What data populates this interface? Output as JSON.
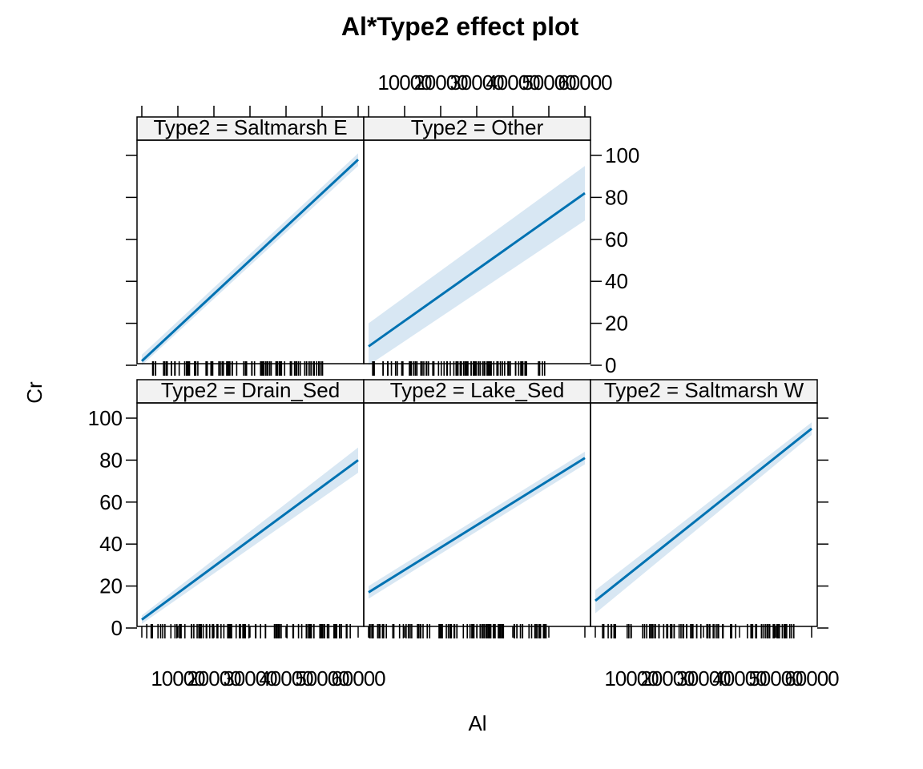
{
  "chart_data": {
    "type": "line",
    "title": "Al*Type2 effect plot",
    "xlabel": "Al",
    "ylabel": "Cr",
    "ylim": [
      0,
      100
    ],
    "y_ticks": [
      "0",
      "20",
      "40",
      "60",
      "80",
      "100"
    ],
    "x_tick_labels": [
      "10000",
      "20000",
      "30000",
      "40000",
      "50000",
      "60000"
    ],
    "colors": {
      "line": "#0072B2",
      "band": "#D8E7F3",
      "strip": "#F2F2F2",
      "frame": "#000000"
    },
    "panels": [
      {
        "strip": "Type2 = Saltmarsh E",
        "y_start": 2,
        "y_end": 98,
        "ci_start": [
          0,
          5
        ],
        "ci_end": [
          95,
          101
        ]
      },
      {
        "strip": "Type2 = Other",
        "y_start": 9,
        "y_end": 82,
        "ci_start": [
          0,
          20
        ],
        "ci_end": [
          69,
          95
        ]
      },
      {
        "strip": "Type2 = Drain_Sed",
        "y_start": 4,
        "y_end": 80,
        "ci_start": [
          2,
          6
        ],
        "ci_end": [
          74,
          86
        ]
      },
      {
        "strip": "Type2 = Lake_Sed",
        "y_start": 17,
        "y_end": 81,
        "ci_start": [
          14,
          20
        ],
        "ci_end": [
          78,
          84
        ]
      },
      {
        "strip": "Type2 = Saltmarsh W",
        "y_start": 13,
        "y_end": 95,
        "ci_start": [
          7,
          18
        ],
        "ci_end": [
          92,
          98
        ]
      }
    ]
  }
}
